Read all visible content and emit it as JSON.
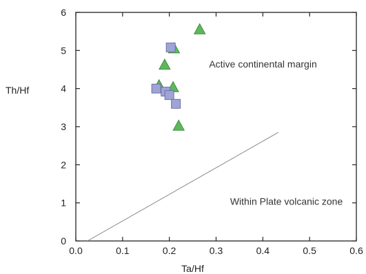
{
  "chart_data": {
    "type": "scatter",
    "title": "",
    "xlabel": "Ta/Hf",
    "ylabel": "Th/Hf",
    "xlim": [
      0.0,
      0.6
    ],
    "ylim": [
      0,
      6
    ],
    "xticks": [
      "0.0",
      "0.1",
      "0.2",
      "0.3",
      "0.4",
      "0.5",
      "0.6"
    ],
    "yticks": [
      "0",
      "1",
      "2",
      "3",
      "4",
      "5",
      "6"
    ],
    "grid": false,
    "series": [
      {
        "marker": "triangle",
        "color": "#5cb85c",
        "points": [
          {
            "x": 0.265,
            "y": 5.55
          },
          {
            "x": 0.21,
            "y": 5.05
          },
          {
            "x": 0.19,
            "y": 4.62
          },
          {
            "x": 0.178,
            "y": 4.08
          },
          {
            "x": 0.208,
            "y": 4.03
          },
          {
            "x": 0.22,
            "y": 3.02
          }
        ]
      },
      {
        "marker": "square",
        "color": "#9fa4d6",
        "points": [
          {
            "x": 0.203,
            "y": 5.08
          },
          {
            "x": 0.172,
            "y": 4.0
          },
          {
            "x": 0.192,
            "y": 3.92
          },
          {
            "x": 0.2,
            "y": 3.83
          },
          {
            "x": 0.214,
            "y": 3.6
          }
        ]
      }
    ],
    "boundary_line": {
      "x": [
        0.025,
        0.433
      ],
      "y": [
        0,
        2.85
      ],
      "color": "#888888"
    },
    "annotations": [
      {
        "text": "Active continental margin",
        "x": 0.285,
        "y": 4.55
      },
      {
        "text": "Within Plate volcanic zone",
        "x": 0.33,
        "y": 0.95
      }
    ]
  }
}
